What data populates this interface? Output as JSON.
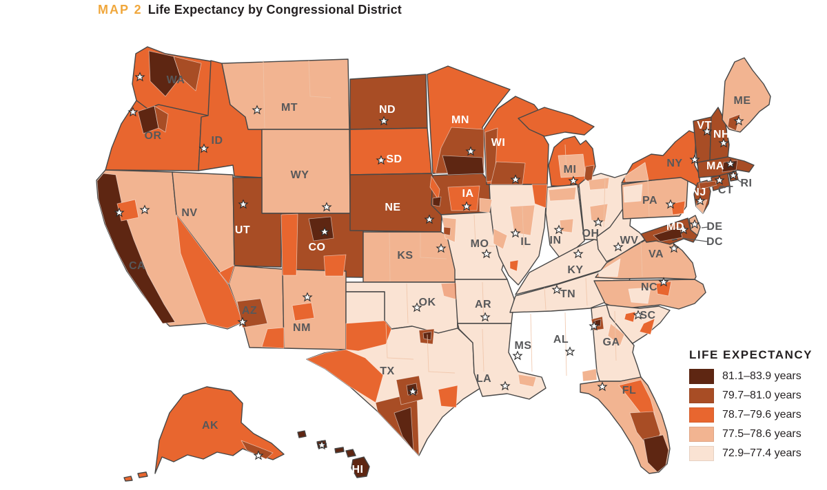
{
  "title": {
    "eyebrow": "MAP 2",
    "text": "Life Expectancy by Congressional District"
  },
  "legend": {
    "title": "LIFE EXPECTANCY",
    "items": [
      {
        "label": "81.1–83.9 years",
        "color": "#5E2612"
      },
      {
        "label": "79.7–81.0 years",
        "color": "#A84D25"
      },
      {
        "label": "78.7–79.6 years",
        "color": "#E8662F"
      },
      {
        "label": "77.5–78.6 years",
        "color": "#F2B491"
      },
      {
        "label": "72.9–77.4 years",
        "color": "#FAE3D3"
      }
    ]
  },
  "map": {
    "border_color": "#474747",
    "label_colors": {
      "dark": "#57585A",
      "light": "#FFFFFF"
    },
    "capital_marker": "star",
    "states": [
      {
        "id": "WA",
        "label": "WA",
        "cat": 2,
        "lc": "dark",
        "lp": [
          255,
          117
        ],
        "star": [
          203,
          112
        ]
      },
      {
        "id": "OR",
        "label": "OR",
        "cat": 2,
        "lc": "dark",
        "lp": [
          222,
          198
        ],
        "star": [
          193,
          163
        ]
      },
      {
        "id": "CA",
        "label": "CA",
        "cat": 3,
        "lc": "dark",
        "lp": [
          199,
          387
        ],
        "star": [
          173,
          309
        ]
      },
      {
        "id": "NV",
        "label": "NV",
        "cat": 3,
        "lc": "dark",
        "lp": [
          275,
          310
        ],
        "star": [
          210,
          305
        ]
      },
      {
        "id": "ID",
        "label": "ID",
        "cat": 2,
        "lc": "dark",
        "lp": [
          315,
          205
        ],
        "star": [
          296,
          216
        ]
      },
      {
        "id": "MT",
        "label": "MT",
        "cat": 3,
        "lc": "dark",
        "lp": [
          420,
          157
        ],
        "star": [
          373,
          160
        ]
      },
      {
        "id": "WY",
        "label": "WY",
        "cat": 3,
        "lc": "dark",
        "lp": [
          435,
          255
        ],
        "star": [
          474,
          301
        ]
      },
      {
        "id": "UT",
        "label": "UT",
        "cat": 1,
        "lc": "light",
        "lp": [
          352,
          335
        ],
        "star": [
          353,
          297
        ]
      },
      {
        "id": "CO",
        "label": "CO",
        "cat": 1,
        "lc": "light",
        "lp": [
          460,
          360
        ],
        "star": [
          471,
          337
        ]
      },
      {
        "id": "AZ",
        "label": "AZ",
        "cat": 3,
        "lc": "dark",
        "lp": [
          362,
          452
        ],
        "star": [
          352,
          468
        ]
      },
      {
        "id": "NM",
        "label": "NM",
        "cat": 3,
        "lc": "dark",
        "lp": [
          438,
          477
        ],
        "star": [
          446,
          432
        ]
      },
      {
        "id": "ND",
        "label": "ND",
        "cat": 1,
        "lc": "light",
        "lp": [
          562,
          160
        ],
        "star": [
          557,
          176
        ]
      },
      {
        "id": "SD",
        "label": "SD",
        "cat": 2,
        "lc": "light",
        "lp": [
          572,
          232
        ],
        "star": [
          553,
          233
        ]
      },
      {
        "id": "NE",
        "label": "NE",
        "cat": 1,
        "lc": "light",
        "lp": [
          570,
          302
        ],
        "star": [
          623,
          319
        ]
      },
      {
        "id": "KS",
        "label": "KS",
        "cat": 3,
        "lc": "dark",
        "lp": [
          588,
          372
        ],
        "star": [
          640,
          361
        ]
      },
      {
        "id": "OK",
        "label": "OK",
        "cat": 4,
        "lc": "dark",
        "lp": [
          620,
          440
        ],
        "star": [
          605,
          447
        ]
      },
      {
        "id": "TX",
        "label": "TX",
        "cat": 4,
        "lc": "dark",
        "lp": [
          562,
          540
        ],
        "star": [
          599,
          569
        ]
      },
      {
        "id": "MN",
        "label": "MN",
        "cat": 2,
        "lc": "light",
        "lp": [
          668,
          175
        ],
        "star": [
          683,
          220
        ]
      },
      {
        "id": "IA",
        "label": "IA",
        "cat": 1,
        "lc": "light",
        "lp": [
          679,
          282
        ],
        "star": [
          677,
          300
        ]
      },
      {
        "id": "MO",
        "label": "MO",
        "cat": 4,
        "lc": "dark",
        "lp": [
          696,
          355
        ],
        "star": [
          706,
          369
        ]
      },
      {
        "id": "AR",
        "label": "AR",
        "cat": 4,
        "lc": "dark",
        "lp": [
          701,
          443
        ],
        "star": [
          704,
          461
        ]
      },
      {
        "id": "LA",
        "label": "LA",
        "cat": 4,
        "lc": "dark",
        "lp": [
          702,
          551
        ],
        "star": [
          733,
          561
        ]
      },
      {
        "id": "WI",
        "label": "WI",
        "cat": 2,
        "lc": "light",
        "lp": [
          723,
          208
        ],
        "star": [
          748,
          261
        ]
      },
      {
        "id": "IL",
        "label": "IL",
        "cat": 4,
        "lc": "dark",
        "lp": [
          763,
          352
        ],
        "star": [
          748,
          339
        ]
      },
      {
        "id": "MI",
        "label": "MI",
        "cat": 2,
        "lc": "dark",
        "lp": [
          827,
          247
        ],
        "star": [
          832,
          263
        ]
      },
      {
        "id": "IN",
        "label": "IN",
        "cat": 4,
        "lc": "dark",
        "lp": [
          806,
          350
        ],
        "star": [
          811,
          334
        ]
      },
      {
        "id": "OH",
        "label": "OH",
        "cat": 4,
        "lc": "dark",
        "lp": [
          857,
          340
        ],
        "star": [
          868,
          323
        ]
      },
      {
        "id": "KY",
        "label": "KY",
        "cat": 4,
        "lc": "dark",
        "lp": [
          835,
          393
        ],
        "star": [
          839,
          369
        ]
      },
      {
        "id": "TN",
        "label": "TN",
        "cat": 4,
        "lc": "dark",
        "lp": [
          824,
          428
        ],
        "star": [
          808,
          421
        ]
      },
      {
        "id": "MS",
        "label": "MS",
        "cat": 4,
        "lc": "dark",
        "lp": [
          759,
          503
        ],
        "star": [
          751,
          517
        ]
      },
      {
        "id": "AL",
        "label": "AL",
        "cat": 4,
        "lc": "dark",
        "lp": [
          814,
          494
        ],
        "star": [
          827,
          511
        ]
      },
      {
        "id": "GA",
        "label": "GA",
        "cat": 4,
        "lc": "dark",
        "lp": [
          887,
          498
        ],
        "star": [
          862,
          474
        ]
      },
      {
        "id": "FL",
        "label": "FL",
        "cat": 3,
        "lc": "dark",
        "lp": [
          913,
          568
        ],
        "star": [
          874,
          562
        ]
      },
      {
        "id": "SC",
        "label": "SC",
        "cat": 4,
        "lc": "dark",
        "lp": [
          940,
          459
        ],
        "star": [
          926,
          458
        ]
      },
      {
        "id": "NC",
        "label": "NC",
        "cat": 3,
        "lc": "dark",
        "lp": [
          942,
          418
        ],
        "star": [
          963,
          410
        ]
      },
      {
        "id": "VA",
        "label": "VA",
        "cat": 3,
        "lc": "dark",
        "lp": [
          952,
          370
        ],
        "star": [
          978,
          361
        ]
      },
      {
        "id": "WV",
        "label": "WV",
        "cat": 4,
        "lc": "dark",
        "lp": [
          913,
          350
        ],
        "star": [
          897,
          359
        ]
      },
      {
        "id": "PA",
        "label": "PA",
        "cat": 3,
        "lc": "dark",
        "lp": [
          943,
          292
        ],
        "star": [
          973,
          297
        ]
      },
      {
        "id": "NY",
        "label": "NY",
        "cat": 2,
        "lc": "dark",
        "lp": [
          979,
          238
        ],
        "star": [
          1008,
          232
        ]
      },
      {
        "id": "ME",
        "label": "ME",
        "cat": 3,
        "lc": "dark",
        "lp": [
          1077,
          147
        ],
        "star": [
          1072,
          176
        ]
      },
      {
        "id": "VT",
        "label": "VT",
        "cat": 1,
        "lc": "light",
        "lp": [
          1022,
          183
        ],
        "star": [
          1026,
          191
        ]
      },
      {
        "id": "NH",
        "label": "NH",
        "cat": 1,
        "lc": "light",
        "lp": [
          1047,
          196
        ],
        "star": [
          1050,
          208
        ]
      },
      {
        "id": "MA",
        "label": "MA",
        "cat": 1,
        "lc": "light",
        "lp": [
          1038,
          242
        ],
        "star": [
          1060,
          238
        ]
      },
      {
        "id": "RI",
        "label": "RI",
        "cat": 1,
        "lc": "dark",
        "star": [
          1064,
          255
        ],
        "callout": {
          "tp": [
            1083,
            267
          ],
          "line": [
            1070,
            261,
            1076,
            265
          ]
        }
      },
      {
        "id": "CT",
        "label": "CT",
        "cat": 1,
        "lc": "dark",
        "star": [
          1044,
          262
        ],
        "callout": {
          "tp": [
            1053,
            277
          ]
        }
      },
      {
        "id": "NJ",
        "label": "NJ",
        "cat": 1,
        "lc": "light",
        "lp": [
          1014,
          280
        ],
        "star": [
          1016,
          292
        ]
      },
      {
        "id": "DE",
        "label": "DE",
        "cat": 3,
        "lc": "dark",
        "star": [
          1008,
          326
        ],
        "callout": {
          "tp": [
            1037,
            330
          ],
          "line": [
            1018,
            331,
            1027,
            330
          ]
        }
      },
      {
        "id": "MD",
        "label": "MD",
        "cat": 1,
        "lc": "light",
        "lp": [
          980,
          330
        ],
        "star": [
          992,
          334
        ]
      },
      {
        "id": "DC",
        "label": "DC",
        "cat": 0,
        "lc": "dark",
        "callout": {
          "tp": [
            1037,
            352
          ],
          "line": [
            990,
            346,
            1026,
            351
          ]
        }
      },
      {
        "id": "AK",
        "label": "AK",
        "cat": 2,
        "lc": "dark",
        "lp": [
          305,
          619
        ],
        "star": [
          375,
          662
        ]
      },
      {
        "id": "HI",
        "label": "HI",
        "cat": 0,
        "lc": "light",
        "lp": [
          519,
          683
        ],
        "star": [
          467,
          647
        ]
      }
    ]
  }
}
